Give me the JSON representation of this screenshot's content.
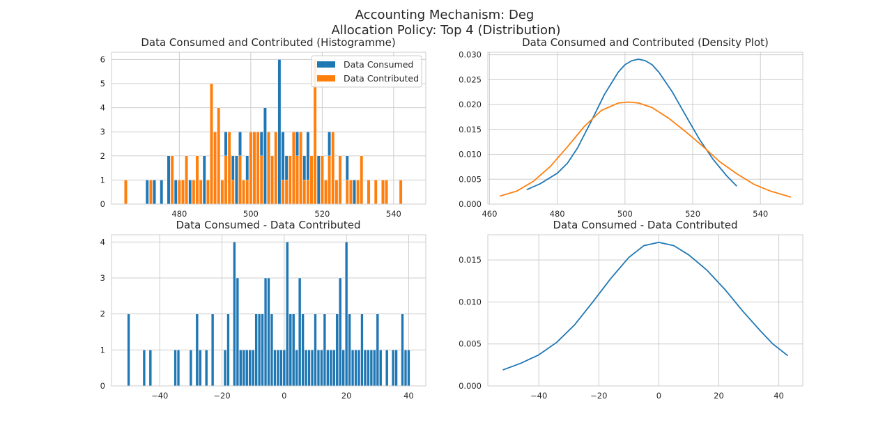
{
  "suptitle": [
    "Accounting Mechanism: Deg",
    "Allocation Policy: Top 4 (Distribution)"
  ],
  "colors": {
    "consumed": "#1f77b4",
    "contributed": "#ff7f0e",
    "grid": "#cccccc",
    "frame": "#cccccc"
  },
  "chart_data": [
    {
      "id": "hist-top",
      "type": "bar",
      "title": "Data Consumed and Contributed (Histogramme)",
      "xlim": [
        461,
        549
      ],
      "ylim": [
        0,
        6.3
      ],
      "xticks": [
        480,
        500,
        520,
        540
      ],
      "yticks": [
        0,
        1,
        2,
        3,
        4,
        5,
        6
      ],
      "grid": true,
      "legend": {
        "placement": "top-right",
        "entries": [
          "Data Consumed",
          "Data Contributed"
        ]
      },
      "series": [
        {
          "name": "Data Consumed",
          "x": [
            471,
            473,
            475,
            477,
            479,
            483,
            487,
            489,
            490,
            491,
            492,
            493,
            494,
            495,
            496,
            497,
            498,
            499,
            500,
            501,
            502,
            503,
            504,
            505,
            506,
            507,
            508,
            509,
            510,
            511,
            512,
            513,
            514,
            515,
            516,
            517,
            519,
            521,
            522,
            523,
            525,
            527,
            529,
            531,
            533
          ],
          "values": [
            1,
            1,
            1,
            2,
            1,
            1,
            2,
            1,
            3,
            4,
            1,
            3,
            1,
            2,
            2,
            3,
            1,
            2,
            3,
            2,
            1,
            3,
            4,
            3,
            1,
            2,
            6,
            3,
            2,
            1,
            1,
            3,
            1,
            2,
            3,
            1,
            2,
            1,
            3,
            2,
            1,
            2,
            1,
            1,
            1
          ]
        },
        {
          "name": "Data Contributed",
          "x": [
            465,
            472,
            478,
            480,
            481,
            482,
            484,
            485,
            486,
            488,
            489,
            490,
            491,
            492,
            493,
            494,
            495,
            497,
            498,
            499,
            500,
            501,
            502,
            503,
            505,
            506,
            507,
            509,
            510,
            511,
            512,
            513,
            514,
            515,
            516,
            517,
            518,
            520,
            521,
            522,
            523,
            524,
            525,
            527,
            528,
            530,
            531,
            533,
            535,
            537,
            538,
            542
          ],
          "values": [
            1,
            1,
            2,
            1,
            1,
            2,
            1,
            2,
            1,
            1,
            5,
            3,
            4,
            1,
            2,
            3,
            1,
            2,
            1,
            1,
            3,
            3,
            3,
            2,
            3,
            2,
            3,
            1,
            1,
            2,
            3,
            2,
            3,
            1,
            1,
            2,
            6,
            2,
            1,
            2,
            3,
            1,
            2,
            1,
            1,
            1,
            2,
            1,
            1,
            1,
            1,
            1
          ]
        }
      ]
    },
    {
      "id": "density-top",
      "type": "line",
      "title": "Data Consumed and Contributed (Density Plot)",
      "xlim": [
        459.5,
        552.5
      ],
      "ylim": [
        0,
        0.0305
      ],
      "xticks": [
        460,
        480,
        500,
        520,
        540
      ],
      "yticks": [
        0.0,
        0.005,
        0.01,
        0.015,
        0.02,
        0.025,
        0.03
      ],
      "grid": true,
      "series": [
        {
          "name": "Data Consumed",
          "x": [
            471,
            475,
            480,
            483,
            486,
            490,
            494,
            498,
            500,
            502,
            504,
            506,
            508,
            510,
            514,
            518,
            522,
            526,
            530,
            533
          ],
          "values": [
            0.0029,
            0.0041,
            0.0062,
            0.0082,
            0.0113,
            0.0166,
            0.0221,
            0.0265,
            0.028,
            0.0288,
            0.0291,
            0.0288,
            0.028,
            0.0265,
            0.0225,
            0.0177,
            0.013,
            0.009,
            0.0057,
            0.0036
          ]
        },
        {
          "name": "Data Contributed",
          "x": [
            463,
            468,
            473,
            478,
            483,
            488,
            493,
            498,
            501,
            504,
            508,
            513,
            518,
            523,
            528,
            533,
            538,
            543,
            549
          ],
          "values": [
            0.0016,
            0.0026,
            0.0046,
            0.0076,
            0.0115,
            0.0156,
            0.0188,
            0.0203,
            0.0205,
            0.0203,
            0.0194,
            0.0172,
            0.0145,
            0.0116,
            0.0085,
            0.0061,
            0.004,
            0.0026,
            0.0014
          ]
        }
      ]
    },
    {
      "id": "hist-bottom",
      "type": "bar",
      "title": "Data Consumed - Data Contributed",
      "xlim": [
        -55.5,
        45.5
      ],
      "ylim": [
        0,
        4.2
      ],
      "xticks": [
        -40,
        -20,
        0,
        20,
        40
      ],
      "yticks": [
        0,
        1,
        2,
        3,
        4
      ],
      "grid": true,
      "series": [
        {
          "name": "",
          "x": [
            -50,
            -45,
            -43,
            -35,
            -34,
            -30,
            -28,
            -27,
            -25,
            -23,
            -19,
            -18,
            -16,
            -15,
            -14,
            -13,
            -12,
            -11,
            -10,
            -9,
            -8,
            -7,
            -6,
            -5,
            -4,
            -3,
            -2,
            -1,
            0,
            1,
            2,
            3,
            4,
            5,
            6,
            7,
            8,
            9,
            10,
            11,
            12,
            13,
            14,
            15,
            16,
            17,
            18,
            19,
            20,
            21,
            22,
            23,
            24,
            25,
            26,
            27,
            28,
            29,
            30,
            31,
            33,
            35,
            36,
            38,
            39,
            40
          ],
          "values": [
            2,
            1,
            1,
            1,
            1,
            1,
            2,
            1,
            1,
            2,
            1,
            2,
            4,
            3,
            1,
            1,
            1,
            1,
            1,
            2,
            2,
            2,
            3,
            3,
            2,
            1,
            1,
            1,
            1,
            4,
            2,
            2,
            1,
            3,
            2,
            1,
            1,
            1,
            2,
            1,
            1,
            2,
            1,
            1,
            1,
            2,
            3,
            1,
            4,
            2,
            1,
            1,
            1,
            2,
            1,
            1,
            1,
            1,
            2,
            1,
            1,
            1,
            1,
            2,
            1,
            1
          ]
        }
      ]
    },
    {
      "id": "density-bottom",
      "type": "line",
      "title": "Data Consumed - Data Contributed",
      "xlim": [
        -57,
        48
      ],
      "ylim": [
        0,
        0.018
      ],
      "xticks": [
        -40,
        -20,
        0,
        20,
        40
      ],
      "yticks": [
        0.0,
        0.005,
        0.01,
        0.015
      ],
      "grid": true,
      "series": [
        {
          "name": "",
          "x": [
            -52,
            -46,
            -40,
            -34,
            -28,
            -22,
            -16,
            -10,
            -5,
            0,
            5,
            10,
            16,
            22,
            28,
            34,
            38,
            43
          ],
          "values": [
            0.0019,
            0.0027,
            0.0037,
            0.0052,
            0.0073,
            0.01,
            0.0128,
            0.0153,
            0.0167,
            0.0171,
            0.0167,
            0.0156,
            0.0138,
            0.0115,
            0.0089,
            0.0065,
            0.005,
            0.0036
          ]
        }
      ]
    }
  ]
}
